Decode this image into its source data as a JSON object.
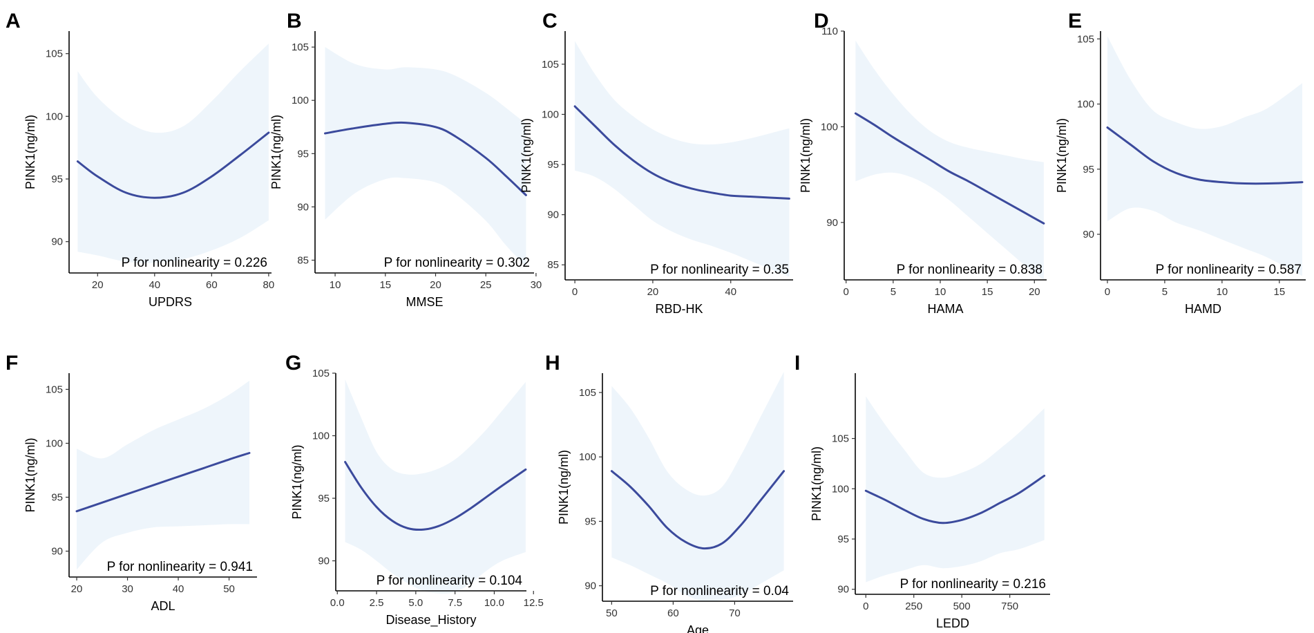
{
  "figure": {
    "line_color": "#3b4a9c",
    "ribbon_color": "#eef5fb",
    "axis_color": "#000000"
  },
  "chart_data": [
    {
      "type": "line",
      "panel": "A",
      "title": "",
      "xlabel": "UPDRS",
      "ylabel": "PINK1(ng/ml)",
      "xlim": [
        10,
        81
      ],
      "ylim": [
        87.5,
        106.8
      ],
      "xticks": [
        20,
        40,
        60,
        80
      ],
      "yticks": [
        90,
        95,
        100,
        105
      ],
      "x": [
        13,
        20,
        30,
        40,
        50,
        60,
        70,
        80
      ],
      "y": [
        96.4,
        95.2,
        93.9,
        93.5,
        93.9,
        95.2,
        96.9,
        98.7
      ],
      "lower": [
        89.2,
        88.9,
        88.4,
        88.3,
        88.6,
        89.3,
        90.3,
        91.7
      ],
      "upper": [
        103.6,
        101.5,
        99.6,
        98.7,
        99.2,
        101.2,
        103.6,
        105.8
      ],
      "annotation": "P for nonlinearity =  0.226"
    },
    {
      "type": "line",
      "panel": "B",
      "title": "",
      "xlabel": "MMSE",
      "ylabel": "PINK1(ng/ml)",
      "xlim": [
        8,
        29.8
      ],
      "ylim": [
        83.8,
        106.5
      ],
      "xticks": [
        10,
        15,
        20,
        25,
        30
      ],
      "yticks": [
        85,
        90,
        95,
        100,
        105
      ],
      "x": [
        9,
        12,
        15,
        17,
        20,
        22,
        25,
        27,
        29
      ],
      "y": [
        96.9,
        97.4,
        97.8,
        97.9,
        97.5,
        96.6,
        94.6,
        92.9,
        91.1
      ],
      "lower": [
        88.8,
        91.3,
        92.6,
        92.7,
        92.3,
        91.2,
        88.7,
        86.4,
        84.4
      ],
      "upper": [
        105.0,
        103.4,
        102.9,
        103.1,
        102.9,
        102.3,
        100.7,
        99.3,
        97.8
      ],
      "annotation": "P for nonlinearity =  0.302"
    },
    {
      "type": "line",
      "panel": "C",
      "title": "",
      "xlabel": "RBD-HK",
      "ylabel": "PINK1(ng/ml)",
      "xlim": [
        -2.5,
        56
      ],
      "ylim": [
        83.5,
        108.3
      ],
      "xticks": [
        0,
        20,
        40
      ],
      "yticks": [
        85,
        90,
        95,
        100,
        105
      ],
      "x": [
        0,
        5,
        10,
        15,
        20,
        25,
        30,
        35,
        40,
        45,
        50,
        55
      ],
      "y": [
        100.8,
        98.9,
        97.0,
        95.4,
        94.1,
        93.2,
        92.6,
        92.2,
        91.9,
        91.8,
        91.7,
        91.6
      ],
      "lower": [
        94.4,
        93.8,
        92.6,
        91.0,
        89.4,
        88.3,
        87.5,
        86.9,
        86.2,
        85.4,
        84.6,
        83.8
      ],
      "upper": [
        107.3,
        104.1,
        101.5,
        99.8,
        98.5,
        97.6,
        97.1,
        97.0,
        97.2,
        97.6,
        98.1,
        98.6
      ],
      "annotation": "P for nonlinearity =  0.35"
    },
    {
      "type": "line",
      "panel": "D",
      "title": "",
      "xlabel": "HAMA",
      "ylabel": "PINK1(ng/ml)",
      "xlim": [
        -0.2,
        21.3
      ],
      "ylim": [
        84.0,
        110.0
      ],
      "xticks": [
        0,
        5,
        10,
        15,
        20
      ],
      "yticks": [
        90,
        100,
        110
      ],
      "x": [
        1,
        3,
        5,
        7,
        9,
        11,
        13,
        15,
        17,
        19,
        21
      ],
      "y": [
        101.4,
        100.2,
        98.9,
        97.7,
        96.5,
        95.3,
        94.3,
        93.2,
        92.1,
        91.0,
        89.9
      ],
      "lower": [
        94.3,
        95.0,
        95.2,
        94.7,
        93.7,
        92.3,
        90.6,
        88.9,
        87.2,
        85.5,
        84.0
      ],
      "upper": [
        109.0,
        106.0,
        103.4,
        101.2,
        99.5,
        98.4,
        97.8,
        97.4,
        97.0,
        96.6,
        96.3
      ],
      "annotation": "P for nonlinearity =  0.838"
    },
    {
      "type": "line",
      "panel": "E",
      "title": "",
      "xlabel": "HAMD",
      "ylabel": "PINK1(ng/ml)",
      "xlim": [
        -0.6,
        17.3
      ],
      "ylim": [
        86.5,
        105.6
      ],
      "xticks": [
        0,
        5,
        10,
        15
      ],
      "yticks": [
        90,
        95,
        100,
        105
      ],
      "x": [
        0,
        2,
        4,
        6,
        8,
        10,
        12,
        14,
        17
      ],
      "y": [
        98.2,
        96.9,
        95.6,
        94.7,
        94.2,
        94.0,
        93.9,
        93.9,
        94.0
      ],
      "lower": [
        91.0,
        92.0,
        91.8,
        90.9,
        90.3,
        89.6,
        88.9,
        88.2,
        86.8
      ],
      "upper": [
        105.2,
        101.9,
        99.5,
        98.6,
        98.1,
        98.3,
        99.0,
        99.7,
        101.6
      ],
      "annotation": "P for nonlinearity =  0.587"
    },
    {
      "type": "line",
      "panel": "F",
      "title": "",
      "xlabel": "ADL",
      "ylabel": "PINK1(ng/ml)",
      "xlim": [
        18.5,
        55.5
      ],
      "ylim": [
        87.6,
        106.5
      ],
      "xticks": [
        20,
        30,
        40,
        50
      ],
      "yticks": [
        90,
        95,
        100,
        105
      ],
      "x": [
        20,
        25,
        30,
        35,
        40,
        45,
        50,
        54
      ],
      "y": [
        93.7,
        94.5,
        95.3,
        96.1,
        96.9,
        97.7,
        98.5,
        99.1
      ],
      "lower": [
        88.3,
        90.8,
        91.7,
        92.2,
        92.3,
        92.4,
        92.5,
        92.5
      ],
      "upper": [
        99.5,
        98.6,
        99.9,
        101.2,
        102.2,
        103.2,
        104.5,
        105.8
      ],
      "annotation": "P for nonlinearity =  0.941"
    },
    {
      "type": "line",
      "panel": "G",
      "title": "",
      "xlabel": "Disease_History",
      "ylabel": "PINK1(ng/ml)",
      "xlim": [
        -0.1,
        12.05
      ],
      "ylim": [
        87.6,
        105.0
      ],
      "xticks": [
        0.0,
        2.5,
        5.0,
        7.5,
        10.0,
        12.5
      ],
      "yticks": [
        90,
        95,
        100,
        105
      ],
      "tick_labels": [
        "0.0",
        "2.5",
        "5.0",
        "7.5",
        "10.0",
        "12.5"
      ],
      "x": [
        0.5,
        1.5,
        2.5,
        3.5,
        4.5,
        5.5,
        6.5,
        7.5,
        8.5,
        9.5,
        10.5,
        12
      ],
      "y": [
        97.9,
        95.9,
        94.3,
        93.2,
        92.6,
        92.5,
        92.8,
        93.4,
        94.2,
        95.1,
        96.0,
        97.3
      ],
      "lower": [
        91.5,
        90.9,
        90.0,
        89.0,
        88.2,
        87.6,
        87.4,
        87.5,
        88.2,
        89.2,
        90.0,
        90.7
      ],
      "upper": [
        104.5,
        101.5,
        98.7,
        97.3,
        96.9,
        97.0,
        97.4,
        98.1,
        99.2,
        100.5,
        102.0,
        104.3
      ],
      "annotation": "P for nonlinearity =  0.104"
    },
    {
      "type": "line",
      "panel": "H",
      "title": "",
      "xlabel": "Age",
      "ylabel": "PINK1(ng/ml)",
      "xlim": [
        48.5,
        79.5
      ],
      "ylim": [
        88.8,
        106.5
      ],
      "xticks": [
        50,
        60,
        70
      ],
      "yticks": [
        90,
        95,
        100,
        105
      ],
      "x": [
        50,
        53,
        56,
        59,
        62,
        65,
        68,
        71,
        74,
        78
      ],
      "y": [
        98.9,
        97.7,
        96.2,
        94.5,
        93.4,
        92.9,
        93.3,
        94.7,
        96.5,
        98.9
      ],
      "lower": [
        92.2,
        91.6,
        90.9,
        90.2,
        89.3,
        88.8,
        88.9,
        89.3,
        90.1,
        91.2
      ],
      "upper": [
        105.5,
        103.8,
        101.5,
        98.9,
        97.5,
        97.0,
        97.7,
        100.1,
        102.9,
        106.6
      ],
      "annotation": "P for nonlinearity =  0.04"
    },
    {
      "type": "line",
      "panel": "I",
      "title": "",
      "xlabel": "LEDD",
      "ylabel": "PINK1(ng/ml)",
      "xlim": [
        -55,
        960
      ],
      "ylim": [
        89.5,
        111.5
      ],
      "xticks": [
        0,
        250,
        500,
        750
      ],
      "yticks": [
        90,
        95,
        100,
        105
      ],
      "x": [
        0,
        100,
        200,
        300,
        400,
        500,
        600,
        700,
        800,
        930
      ],
      "y": [
        99.8,
        98.9,
        97.9,
        97.0,
        96.6,
        96.9,
        97.6,
        98.6,
        99.6,
        101.3
      ],
      "lower": [
        90.7,
        91.4,
        91.9,
        92.4,
        92.1,
        92.3,
        92.8,
        93.6,
        94.0,
        94.9
      ],
      "upper": [
        109.2,
        106.4,
        103.9,
        101.6,
        101.1,
        101.6,
        102.5,
        104.0,
        105.6,
        108.0
      ],
      "annotation": "P for nonlinearity =  0.216"
    }
  ]
}
